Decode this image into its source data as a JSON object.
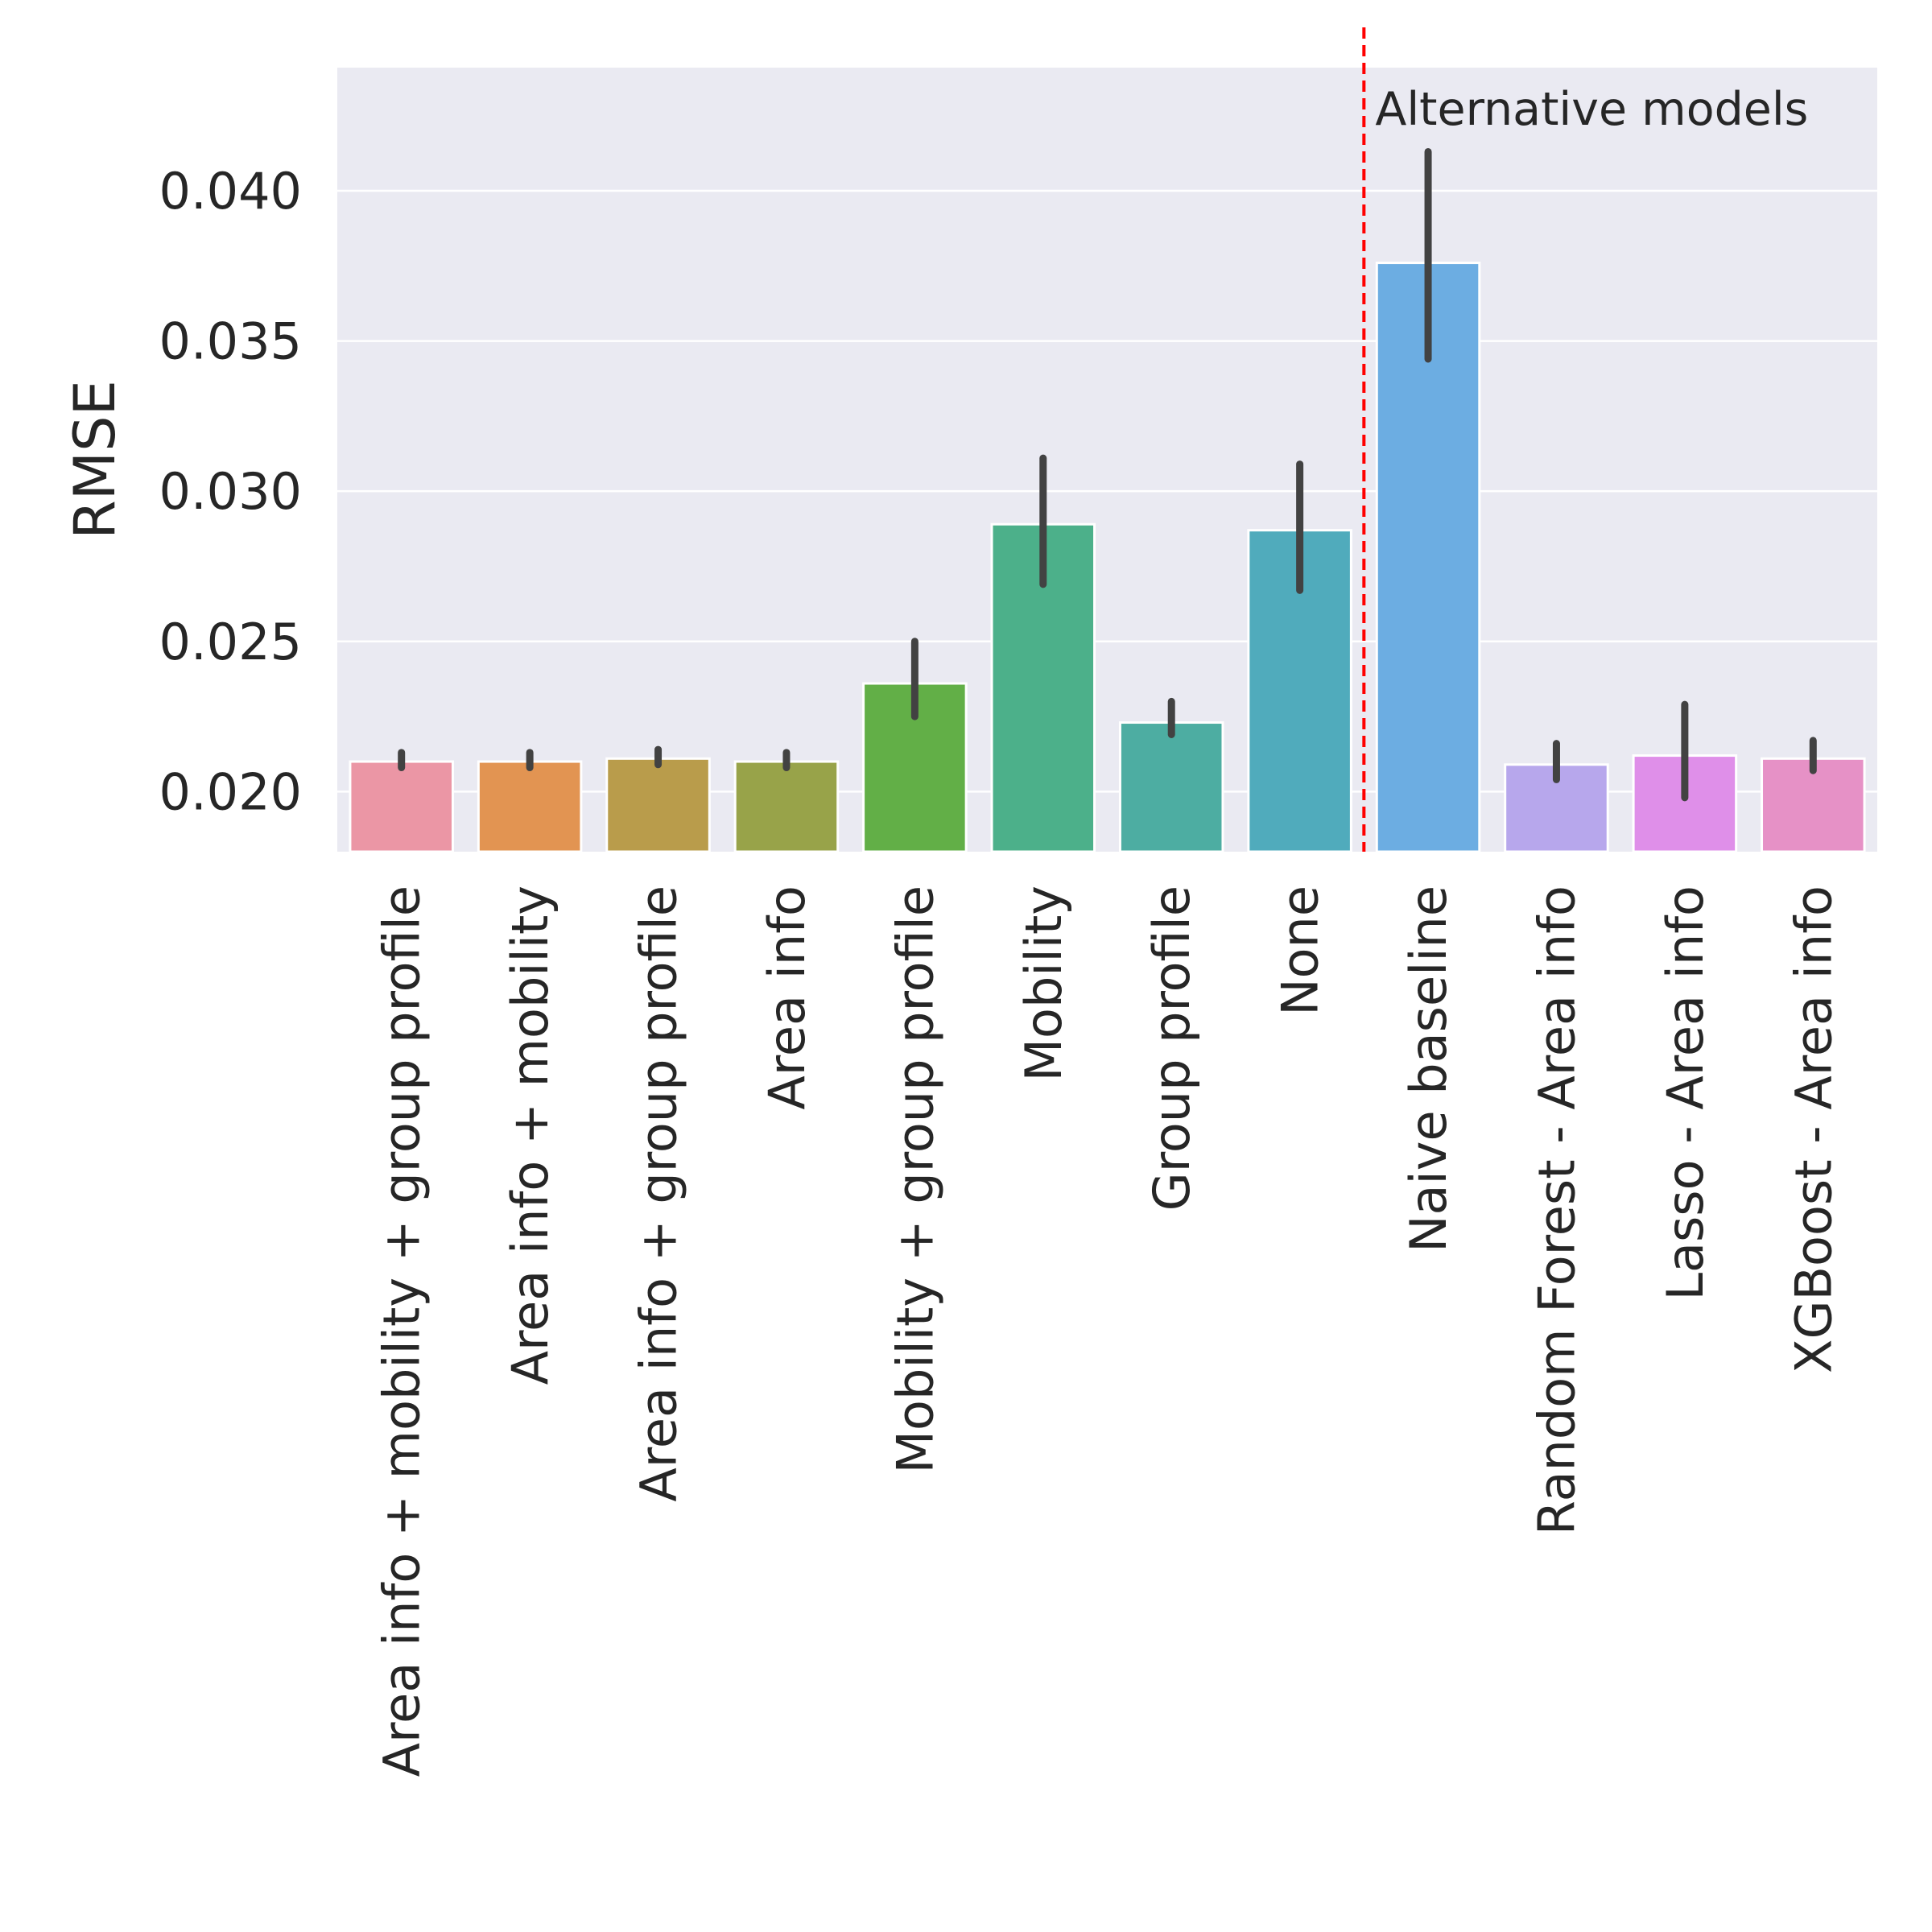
{
  "chart_data": {
    "type": "bar",
    "title": "",
    "xlabel": "",
    "ylabel": "RMSE",
    "ylim": [
      0.018,
      0.0441
    ],
    "yticks": [
      0.02,
      0.025,
      0.03,
      0.035,
      0.04
    ],
    "ytick_labels": [
      "0.020",
      "0.025",
      "0.030",
      "0.035",
      "0.040"
    ],
    "grid": true,
    "categories": [
      "Area info + mobility + group profile",
      "Area info + mobility",
      "Area info + group profile",
      "Area info",
      "Mobility + group profile",
      "Mobility",
      "Group profile",
      "None",
      "Naive baseline",
      "Random Forest - Area info",
      "Lasso - Area info",
      "XGBoost - Area info"
    ],
    "values": [
      0.021,
      0.021,
      0.0211,
      0.021,
      0.0236,
      0.0289,
      0.0223,
      0.0287,
      0.0376,
      0.0209,
      0.0212,
      0.0211
    ],
    "error_low": [
      0.0208,
      0.0208,
      0.0209,
      0.0208,
      0.0225,
      0.0269,
      0.0219,
      0.0267,
      0.0344,
      0.0204,
      0.0198,
      0.0207
    ],
    "error_high": [
      0.0213,
      0.0213,
      0.0214,
      0.0213,
      0.025,
      0.0311,
      0.023,
      0.0309,
      0.0413,
      0.0216,
      0.0229,
      0.0217
    ],
    "colors": [
      "#eb96a5",
      "#e29452",
      "#b99c4b",
      "#98a349",
      "#62af47",
      "#4cb08a",
      "#4dada2",
      "#50abbc",
      "#6cade2",
      "#b7a7ec",
      "#df8fe9",
      "#e691c6"
    ],
    "separator": {
      "position_after_index": 7.5,
      "color": "#ff0000",
      "style": "dashed"
    },
    "annotation": {
      "text": "Alternative models"
    }
  }
}
